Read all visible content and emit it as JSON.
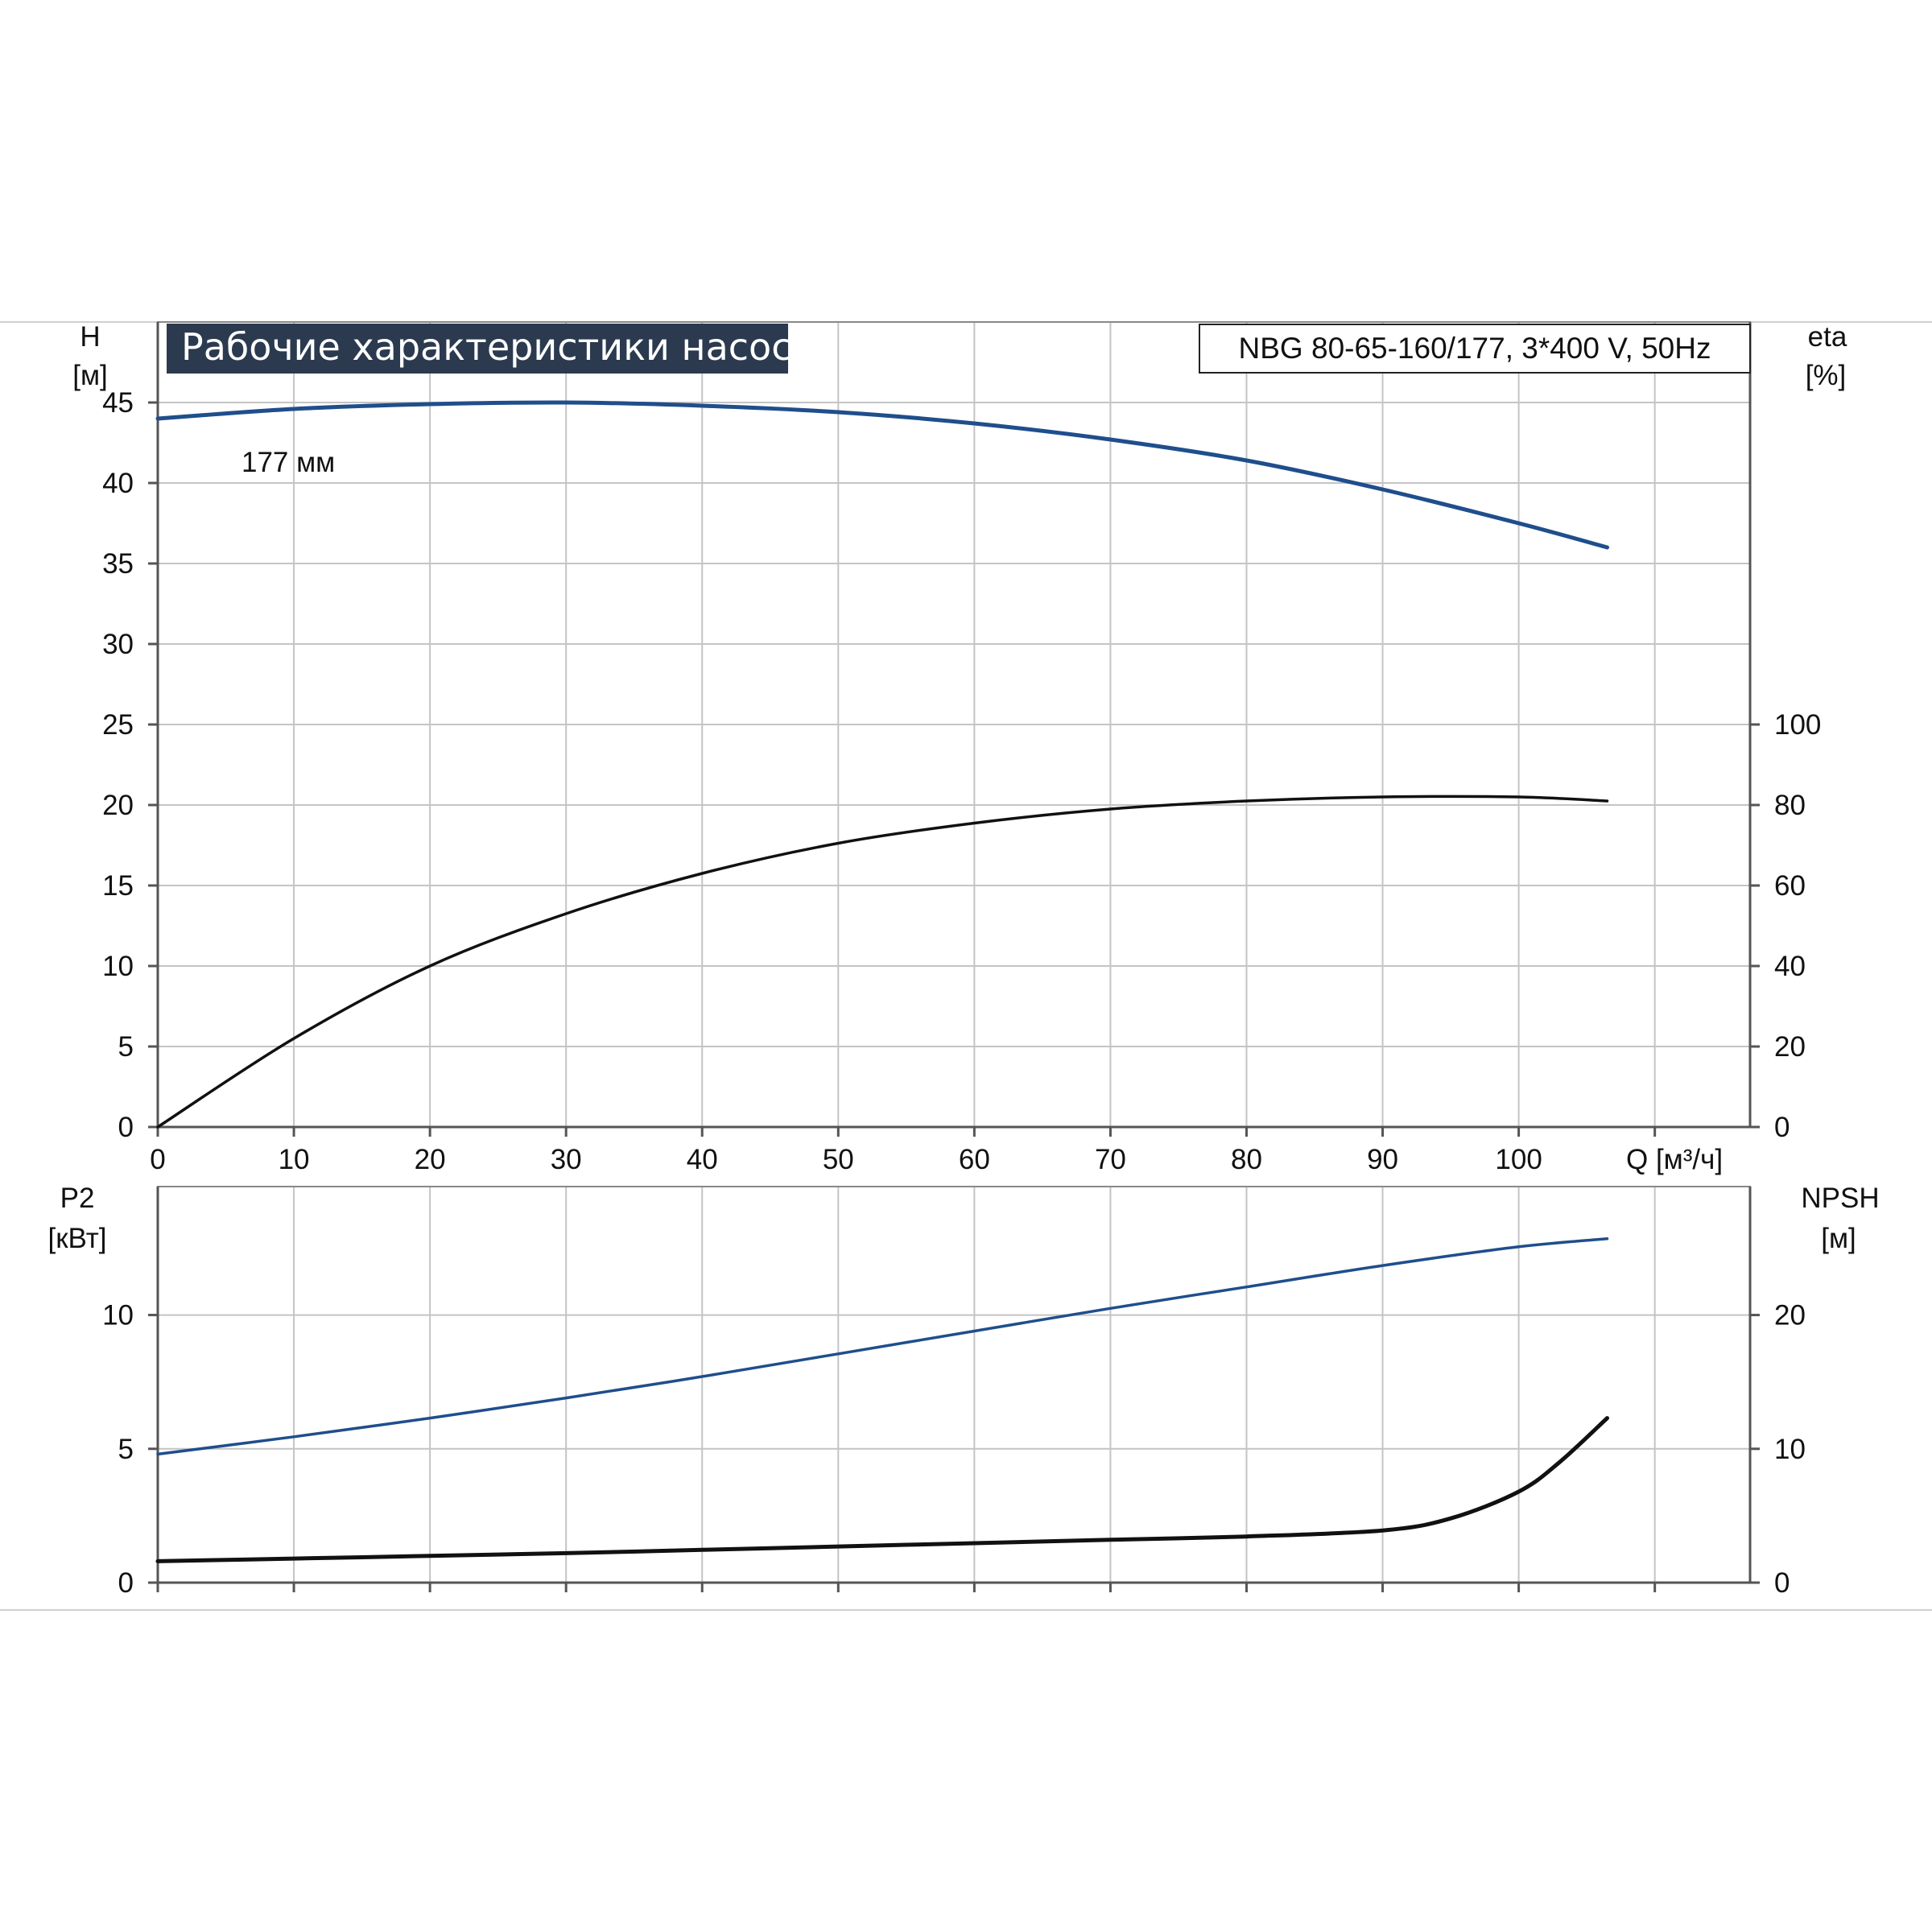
{
  "chart_data": {
    "type": "line",
    "title": "Рабочие характеристики насоса",
    "model_label": "NBG 80-65-160/177, 3*400 V, 50Hz",
    "curve_annotation": "177 мм",
    "x_axis": {
      "label": "Q [м³/ч]",
      "range": [
        0,
        117
      ],
      "ticks": [
        "0",
        "10",
        "20",
        "30",
        "40",
        "50",
        "60",
        "70",
        "80",
        "90",
        "100"
      ]
    },
    "top_panel": {
      "y_left": {
        "label_line1": "H",
        "label_line2": "[м]",
        "range": [
          0,
          50
        ],
        "ticks": [
          "0",
          "5",
          "10",
          "15",
          "20",
          "25",
          "30",
          "35",
          "40",
          "45"
        ]
      },
      "y_right": {
        "label_line1": "eta",
        "label_line2": "[%]",
        "range": [
          0,
          200
        ],
        "ticks": [
          "0",
          "20",
          "40",
          "60",
          "80",
          "100"
        ]
      },
      "series": [
        {
          "name": "H",
          "axis": "left",
          "color": "#1f4e8c",
          "x": [
            0,
            10,
            20,
            30,
            40,
            50,
            60,
            70,
            80,
            90,
            100,
            106.5
          ],
          "y": [
            44.0,
            44.6,
            44.9,
            45.0,
            44.8,
            44.4,
            43.7,
            42.7,
            41.4,
            39.6,
            37.5,
            36.0
          ]
        },
        {
          "name": "eta",
          "axis": "right",
          "color": "#111111",
          "x": [
            0,
            10,
            20,
            30,
            40,
            50,
            60,
            70,
            80,
            90,
            100,
            106.5
          ],
          "y": [
            0,
            22,
            40,
            53,
            63,
            70.5,
            75.5,
            79,
            81,
            82,
            82,
            81
          ]
        }
      ]
    },
    "bottom_panel": {
      "y_left": {
        "label_line1": "P2",
        "label_line2": "[кВт]",
        "range": [
          0,
          14.8
        ],
        "ticks": [
          "0",
          "5",
          "10"
        ]
      },
      "y_right": {
        "label_line1": "NPSH",
        "label_line2": "[м]",
        "range": [
          0,
          29.6
        ],
        "ticks": [
          "0",
          "10",
          "20"
        ]
      },
      "series": [
        {
          "name": "P2",
          "axis": "left",
          "color": "#1f4e8c",
          "x": [
            0,
            10,
            20,
            30,
            40,
            50,
            60,
            70,
            80,
            90,
            100,
            106.5
          ],
          "y": [
            4.8,
            5.45,
            6.15,
            6.9,
            7.7,
            8.55,
            9.4,
            10.25,
            11.05,
            11.85,
            12.55,
            12.85
          ]
        },
        {
          "name": "NPSH",
          "axis": "right",
          "color": "#111111",
          "x": [
            0,
            10,
            20,
            30,
            40,
            50,
            60,
            70,
            80,
            90,
            95,
            100,
            103,
            106.5
          ],
          "y": [
            1.6,
            1.8,
            2.0,
            2.2,
            2.45,
            2.7,
            2.95,
            3.2,
            3.45,
            3.9,
            4.8,
            6.8,
            9.0,
            12.3
          ]
        }
      ]
    }
  }
}
